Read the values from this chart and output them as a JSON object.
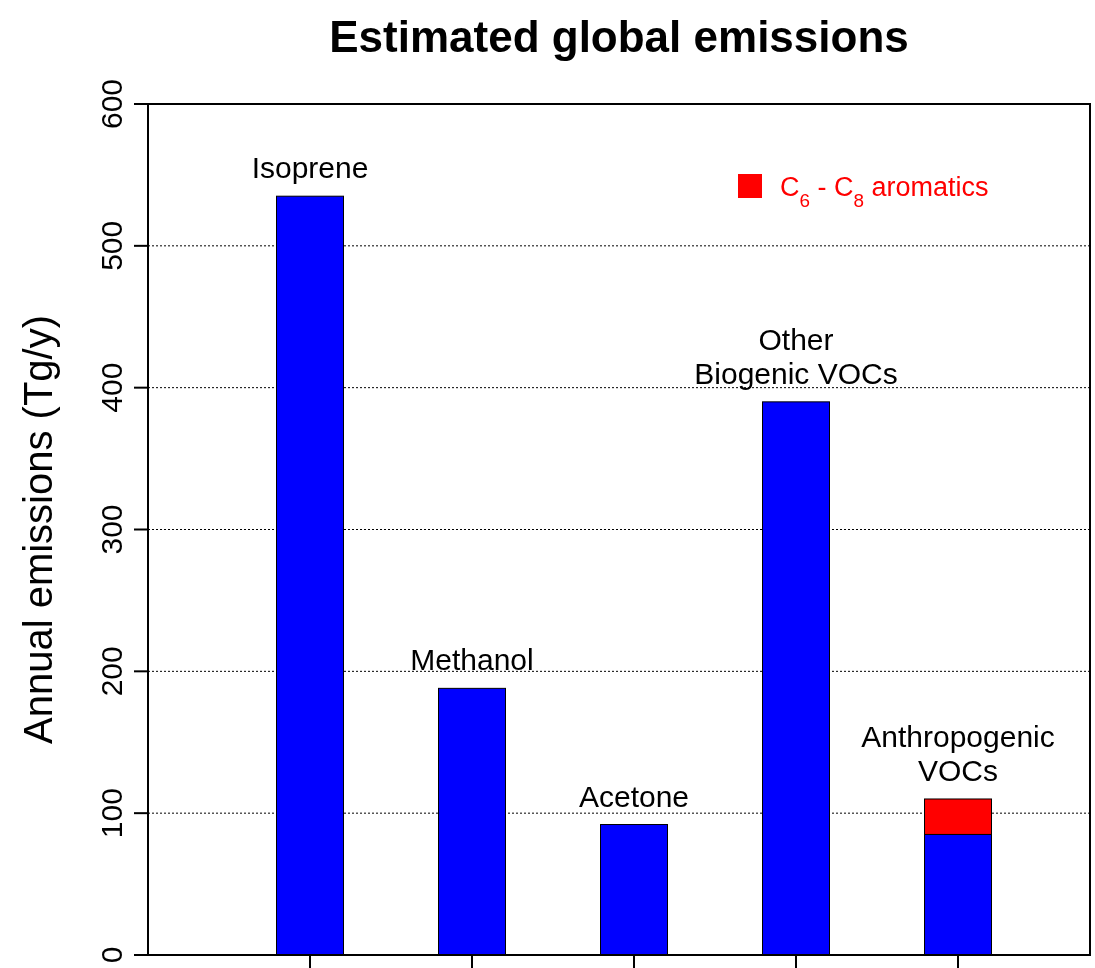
{
  "chart_data": {
    "type": "bar",
    "title": "Estimated global emissions",
    "ylabel": "Annual emissions (Tg/y)",
    "categories": [
      "Isoprene",
      "Methanol",
      "Acetone",
      "Other\nBiogenic VOCs",
      "Anthropogenic\nVOCs"
    ],
    "series": [
      {
        "color": "#0000ff",
        "values": [
          535,
          188,
          92,
          390,
          85
        ]
      },
      {
        "name": "C$_{6}$ - C$_{8}$ aromatics",
        "color": "#ff0000",
        "values": [
          null,
          null,
          null,
          null,
          25
        ]
      }
    ],
    "stacked": true,
    "ylim": [
      0,
      600
    ],
    "yticks": [
      0,
      100,
      200,
      300,
      400,
      500,
      600
    ],
    "grid": "y",
    "legend": "top right"
  }
}
